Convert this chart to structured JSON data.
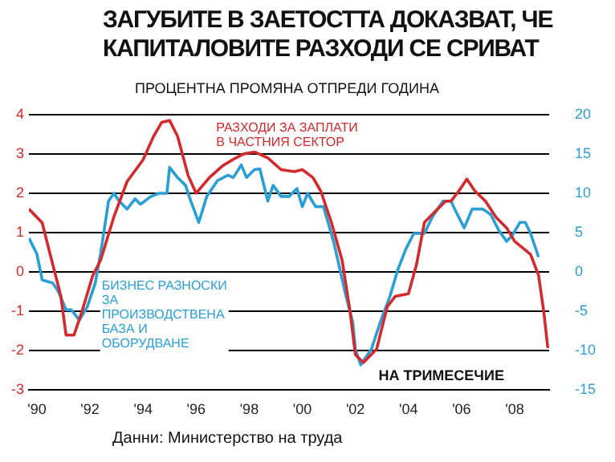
{
  "chart_data": {
    "type": "line",
    "title": "ЗАГУБИТЕ В ЗАЕТОСТТА ДОКАЗВАТ, ЧЕ КАПИТАЛОВИТЕ РАЗХОДИ СЕ СРИВАТ",
    "ylabel": "ПРОЦЕНТНА ПРОМЯНА ОТПРЕДИ ГОДИНА",
    "xlabel": "НА ТРИМЕСЕЧИЕ",
    "annotations": [
      "Данни: Министерство на труда"
    ],
    "xlim": [
      1989.7,
      2009.3
    ],
    "xticks": [
      {
        "value": 1990,
        "label": "'90"
      },
      {
        "value": 1992,
        "label": "'92"
      },
      {
        "value": 1994,
        "label": "'94"
      },
      {
        "value": 1996,
        "label": "'96"
      },
      {
        "value": 1998,
        "label": "'98"
      },
      {
        "value": 2000,
        "label": "'00"
      },
      {
        "value": 2002,
        "label": "'02"
      },
      {
        "value": 2004,
        "label": "'04"
      },
      {
        "value": 2006,
        "label": "'06"
      },
      {
        "value": 2008,
        "label": "'08"
      }
    ],
    "ylim": [
      -3,
      4
    ],
    "yticks": [
      -3,
      -2,
      -1,
      0,
      1,
      2,
      3,
      4
    ],
    "y2lim": [
      -15,
      20
    ],
    "y2ticks": [
      -15,
      -10,
      -5,
      0,
      5,
      10,
      15,
      20
    ],
    "grid": "y",
    "series": [
      {
        "name": "РАЗХОДИ ЗА ЗАПЛАТИ В ЧАСТНИЯ СЕКТОР",
        "color": "#d42a2e",
        "x": [
          1989.7,
          1990.2,
          1990.5,
          1990.9,
          1991.1,
          1991.4,
          1991.7,
          1992.1,
          1992.4,
          1992.9,
          1993.4,
          1994.0,
          1994.4,
          1994.7,
          1995.0,
          1995.3,
          1995.7,
          1996.0,
          1996.5,
          1997.0,
          1997.5,
          1997.8,
          1998.2,
          1998.7,
          1999.2,
          1999.7,
          2000.0,
          2000.4,
          2000.7,
          2001.1,
          2001.5,
          2001.8,
          2002.0,
          2002.3,
          2002.8,
          2003.2,
          2003.5,
          2004.0,
          2004.3,
          2004.6,
          2005.1,
          2005.4,
          2005.6,
          2005.9,
          2006.2,
          2006.5,
          2006.9,
          2007.3,
          2007.7,
          2008.0,
          2008.6,
          2008.9,
          2009.1,
          2009.25
        ],
        "values": [
          1.6,
          1.25,
          0.45,
          -0.6,
          -1.6,
          -1.6,
          -1.0,
          -0.1,
          0.3,
          1.4,
          2.3,
          2.85,
          3.45,
          3.8,
          3.85,
          3.45,
          2.45,
          2.0,
          2.4,
          2.7,
          2.9,
          3.0,
          3.05,
          2.9,
          2.6,
          2.55,
          2.6,
          2.4,
          2.05,
          1.25,
          0.3,
          -1.0,
          -2.1,
          -2.3,
          -1.96,
          -0.88,
          -0.62,
          -0.55,
          0.18,
          1.26,
          1.6,
          1.8,
          1.8,
          2.06,
          2.36,
          2.06,
          1.8,
          1.39,
          1.12,
          0.78,
          0.45,
          -0.08,
          -1.02,
          -1.93
        ]
      },
      {
        "name": "БИЗНЕС РАЗНОСКИ ЗА ПРОИЗВОДСТВЕНА БАЗА И ОБОРУДВАНЕ",
        "color": "#2a9fd6",
        "axis": "y2",
        "x": [
          1989.7,
          1990.0,
          1990.2,
          1990.6,
          1990.8,
          1991.1,
          1991.3,
          1991.6,
          1991.9,
          1992.2,
          1992.4,
          1992.7,
          1992.9,
          1993.1,
          1993.4,
          1993.7,
          1993.9,
          1994.3,
          1994.6,
          1994.9,
          1995.0,
          1995.3,
          1995.6,
          1995.8,
          1996.1,
          1996.4,
          1996.8,
          1997.2,
          1997.4,
          1997.7,
          1997.9,
          1998.2,
          1998.4,
          1998.7,
          1998.9,
          1999.2,
          1999.5,
          1999.8,
          2000.0,
          2000.2,
          2000.5,
          2000.8,
          2001.2,
          2001.6,
          2001.9,
          2002.0,
          2002.2,
          2002.6,
          2003.0,
          2003.3,
          2003.6,
          2003.9,
          2004.2,
          2004.6,
          2004.9,
          2005.3,
          2005.6,
          2005.8,
          2006.1,
          2006.4,
          2006.8,
          2007.1,
          2007.4,
          2007.7,
          2007.9,
          2008.2,
          2008.4,
          2008.6,
          2008.9
        ],
        "values": [
          4.3,
          2.3,
          -1,
          -1.4,
          -2.4,
          -4.8,
          -4.8,
          -6.1,
          -4.4,
          -1.4,
          2.3,
          9,
          10,
          9,
          8,
          9.3,
          8.6,
          9.6,
          10,
          10,
          13.3,
          12,
          11,
          9,
          6.3,
          9.6,
          11.6,
          12.3,
          12,
          13.6,
          12,
          13,
          13.1,
          9,
          11,
          9.6,
          9.6,
          10.6,
          8.3,
          10,
          8.3,
          8.3,
          3.6,
          -2.4,
          -6.4,
          -9.8,
          -11.8,
          -9.8,
          -5.8,
          -3.1,
          0.3,
          2.9,
          4.9,
          4.9,
          7,
          9,
          9,
          7.6,
          5.6,
          8,
          8,
          7.3,
          5.3,
          3.9,
          4.6,
          6.3,
          6.3,
          4.9,
          1.9
        ]
      }
    ]
  }
}
